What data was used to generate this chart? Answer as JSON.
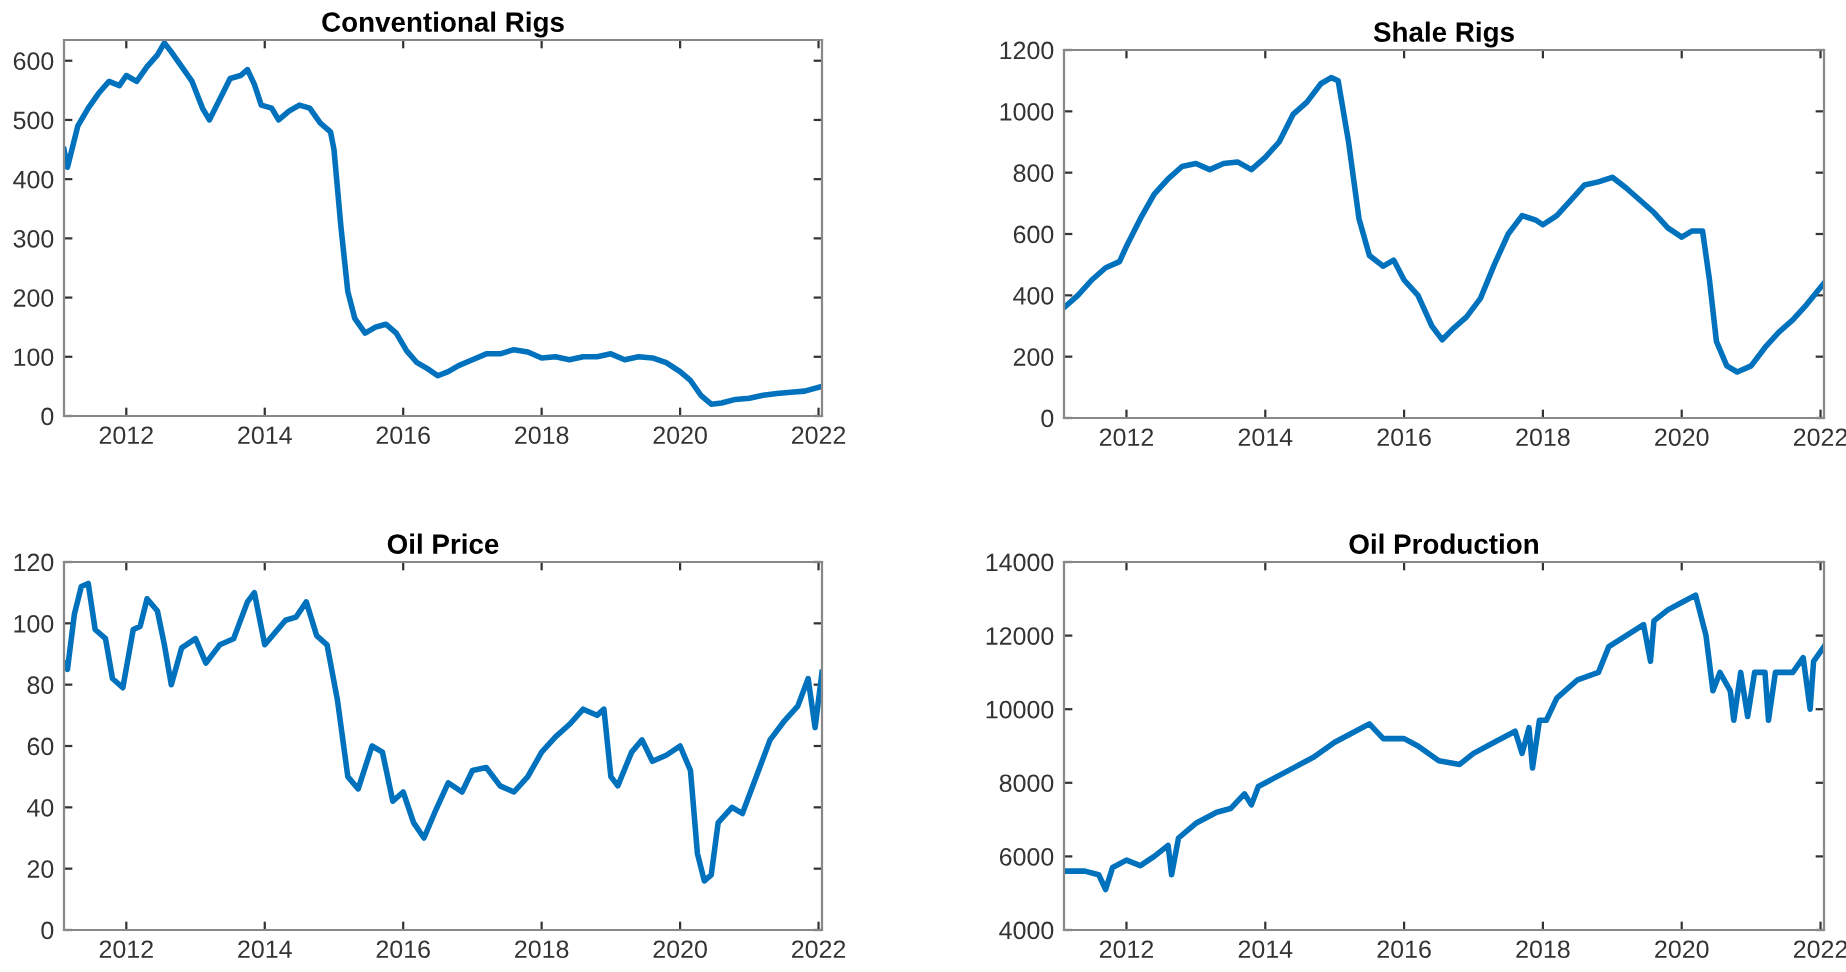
{
  "chart_data": [
    {
      "type": "line",
      "title": "Conventional Rigs",
      "xlim": [
        2011.1,
        2022.05
      ],
      "xticks": [
        2012,
        2014,
        2016,
        2018,
        2020,
        2022
      ],
      "ylim": [
        0,
        635
      ],
      "yticks": [
        0,
        100,
        200,
        300,
        400,
        500,
        600
      ],
      "grid": false,
      "line_style": "solid",
      "marker": "none",
      "series": [
        {
          "color": "#0072bd",
          "x": [
            2011.1,
            2011.15,
            2011.3,
            2011.45,
            2011.6,
            2011.75,
            2011.9,
            2012.0,
            2012.15,
            2012.3,
            2012.45,
            2012.55,
            2012.65,
            2012.8,
            2012.95,
            2013.1,
            2013.2,
            2013.35,
            2013.5,
            2013.65,
            2013.75,
            2013.85,
            2013.95,
            2014.1,
            2014.2,
            2014.35,
            2014.5,
            2014.65,
            2014.8,
            2014.95,
            2015.0,
            2015.1,
            2015.2,
            2015.3,
            2015.45,
            2015.6,
            2015.75,
            2015.9,
            2016.05,
            2016.2,
            2016.35,
            2016.5,
            2016.65,
            2016.8,
            2017.0,
            2017.2,
            2017.4,
            2017.6,
            2017.8,
            2018.0,
            2018.2,
            2018.4,
            2018.6,
            2018.8,
            2019.0,
            2019.2,
            2019.4,
            2019.6,
            2019.8,
            2020.0,
            2020.15,
            2020.3,
            2020.45,
            2020.6,
            2020.8,
            2021.0,
            2021.2,
            2021.4,
            2021.6,
            2021.8,
            2022.05
          ],
          "values": [
            450,
            420,
            490,
            520,
            545,
            565,
            558,
            575,
            565,
            590,
            610,
            630,
            615,
            590,
            565,
            520,
            500,
            535,
            570,
            575,
            585,
            560,
            525,
            520,
            500,
            515,
            525,
            520,
            495,
            480,
            450,
            320,
            210,
            165,
            140,
            150,
            155,
            140,
            110,
            90,
            80,
            68,
            75,
            85,
            95,
            105,
            105,
            112,
            108,
            98,
            100,
            95,
            100,
            100,
            105,
            95,
            100,
            98,
            90,
            75,
            60,
            35,
            20,
            22,
            28,
            30,
            35,
            38,
            40,
            42,
            50
          ]
        }
      ]
    },
    {
      "type": "line",
      "title": "Shale Rigs",
      "xlim": [
        2011.1,
        2022.05
      ],
      "xticks": [
        2012,
        2014,
        2016,
        2018,
        2020,
        2022
      ],
      "ylim": [
        0,
        1200
      ],
      "yticks": [
        0,
        200,
        400,
        600,
        800,
        1000,
        1200
      ],
      "grid": false,
      "line_style": "solid",
      "marker": "none",
      "series": [
        {
          "color": "#0072bd",
          "x": [
            2011.1,
            2011.3,
            2011.5,
            2011.7,
            2011.9,
            2012.0,
            2012.2,
            2012.4,
            2012.6,
            2012.8,
            2013.0,
            2013.2,
            2013.4,
            2013.6,
            2013.8,
            2014.0,
            2014.2,
            2014.4,
            2014.6,
            2014.8,
            2014.95,
            2015.05,
            2015.2,
            2015.35,
            2015.5,
            2015.7,
            2015.85,
            2016.0,
            2016.2,
            2016.4,
            2016.55,
            2016.7,
            2016.9,
            2017.1,
            2017.3,
            2017.5,
            2017.7,
            2017.9,
            2018.0,
            2018.2,
            2018.4,
            2018.6,
            2018.8,
            2019.0,
            2019.2,
            2019.4,
            2019.6,
            2019.8,
            2020.0,
            2020.15,
            2020.3,
            2020.4,
            2020.5,
            2020.65,
            2020.8,
            2021.0,
            2021.2,
            2021.4,
            2021.6,
            2021.8,
            2022.05
          ],
          "values": [
            360,
            400,
            450,
            490,
            510,
            560,
            650,
            730,
            780,
            820,
            830,
            810,
            830,
            835,
            810,
            850,
            900,
            990,
            1030,
            1090,
            1110,
            1100,
            900,
            650,
            530,
            495,
            515,
            450,
            400,
            300,
            255,
            290,
            330,
            390,
            500,
            600,
            660,
            645,
            630,
            660,
            710,
            760,
            770,
            785,
            750,
            710,
            670,
            620,
            590,
            610,
            610,
            450,
            250,
            170,
            150,
            170,
            230,
            280,
            320,
            370,
            440
          ]
        }
      ]
    },
    {
      "type": "line",
      "title": "Oil Price",
      "xlim": [
        2011.1,
        2022.05
      ],
      "xticks": [
        2012,
        2014,
        2016,
        2018,
        2020,
        2022
      ],
      "ylim": [
        0,
        120
      ],
      "yticks": [
        0,
        20,
        40,
        60,
        80,
        100,
        120
      ],
      "grid": false,
      "line_style": "solid",
      "marker": "none",
      "series": [
        {
          "color": "#0072bd",
          "x": [
            2011.1,
            2011.15,
            2011.25,
            2011.35,
            2011.45,
            2011.55,
            2011.7,
            2011.8,
            2011.95,
            2012.1,
            2012.2,
            2012.3,
            2012.45,
            2012.55,
            2012.65,
            2012.8,
            2013.0,
            2013.15,
            2013.35,
            2013.55,
            2013.75,
            2013.85,
            2014.0,
            2014.15,
            2014.3,
            2014.45,
            2014.6,
            2014.75,
            2014.9,
            2015.05,
            2015.2,
            2015.35,
            2015.55,
            2015.7,
            2015.85,
            2016.0,
            2016.15,
            2016.3,
            2016.45,
            2016.65,
            2016.85,
            2017.0,
            2017.2,
            2017.4,
            2017.6,
            2017.8,
            2018.0,
            2018.2,
            2018.4,
            2018.6,
            2018.8,
            2018.9,
            2019.0,
            2019.1,
            2019.3,
            2019.45,
            2019.6,
            2019.8,
            2020.0,
            2020.15,
            2020.25,
            2020.35,
            2020.45,
            2020.55,
            2020.75,
            2020.9,
            2021.1,
            2021.3,
            2021.5,
            2021.7,
            2021.85,
            2021.95,
            2022.05
          ],
          "values": [
            87,
            85,
            103,
            112,
            113,
            98,
            95,
            82,
            79,
            98,
            99,
            108,
            104,
            93,
            80,
            92,
            95,
            87,
            93,
            95,
            107,
            110,
            93,
            97,
            101,
            102,
            107,
            96,
            93,
            75,
            50,
            46,
            60,
            58,
            42,
            45,
            35,
            30,
            38,
            48,
            45,
            52,
            53,
            47,
            45,
            50,
            58,
            63,
            67,
            72,
            70,
            72,
            50,
            47,
            58,
            62,
            55,
            57,
            60,
            52,
            25,
            16,
            18,
            35,
            40,
            38,
            50,
            62,
            68,
            73,
            82,
            66,
            84
          ]
        }
      ]
    },
    {
      "type": "line",
      "title": "Oil Production",
      "xlim": [
        2011.1,
        2022.05
      ],
      "xticks": [
        2012,
        2014,
        2016,
        2018,
        2020,
        2022
      ],
      "ylim": [
        4000,
        14000
      ],
      "yticks": [
        4000,
        6000,
        8000,
        10000,
        12000,
        14000
      ],
      "grid": false,
      "line_style": "solid",
      "marker": "none",
      "series": [
        {
          "color": "#0072bd",
          "x": [
            2011.1,
            2011.4,
            2011.6,
            2011.7,
            2011.8,
            2012.0,
            2012.2,
            2012.4,
            2012.6,
            2012.65,
            2012.75,
            2013.0,
            2013.3,
            2013.5,
            2013.7,
            2013.8,
            2013.9,
            2014.1,
            2014.4,
            2014.7,
            2015.0,
            2015.3,
            2015.5,
            2015.7,
            2016.0,
            2016.2,
            2016.5,
            2016.8,
            2017.0,
            2017.3,
            2017.6,
            2017.7,
            2017.8,
            2017.85,
            2017.95,
            2018.05,
            2018.2,
            2018.5,
            2018.8,
            2018.95,
            2019.2,
            2019.45,
            2019.55,
            2019.6,
            2019.8,
            2020.0,
            2020.2,
            2020.35,
            2020.45,
            2020.55,
            2020.7,
            2020.75,
            2020.85,
            2020.95,
            2021.05,
            2021.2,
            2021.25,
            2021.35,
            2021.6,
            2021.75,
            2021.85,
            2021.9,
            2022.05
          ],
          "values": [
            5600,
            5600,
            5500,
            5100,
            5700,
            5900,
            5750,
            6000,
            6300,
            5500,
            6500,
            6900,
            7200,
            7300,
            7700,
            7400,
            7900,
            8100,
            8400,
            8700,
            9100,
            9400,
            9600,
            9200,
            9200,
            9000,
            8600,
            8500,
            8800,
            9100,
            9400,
            8800,
            9500,
            8400,
            9700,
            9700,
            10300,
            10800,
            11000,
            11700,
            12000,
            12300,
            11300,
            12400,
            12700,
            12900,
            13100,
            12000,
            10500,
            11000,
            10500,
            9700,
            11000,
            9800,
            11000,
            11000,
            9700,
            11000,
            11000,
            11400,
            10000,
            11300,
            11700
          ]
        }
      ]
    }
  ]
}
